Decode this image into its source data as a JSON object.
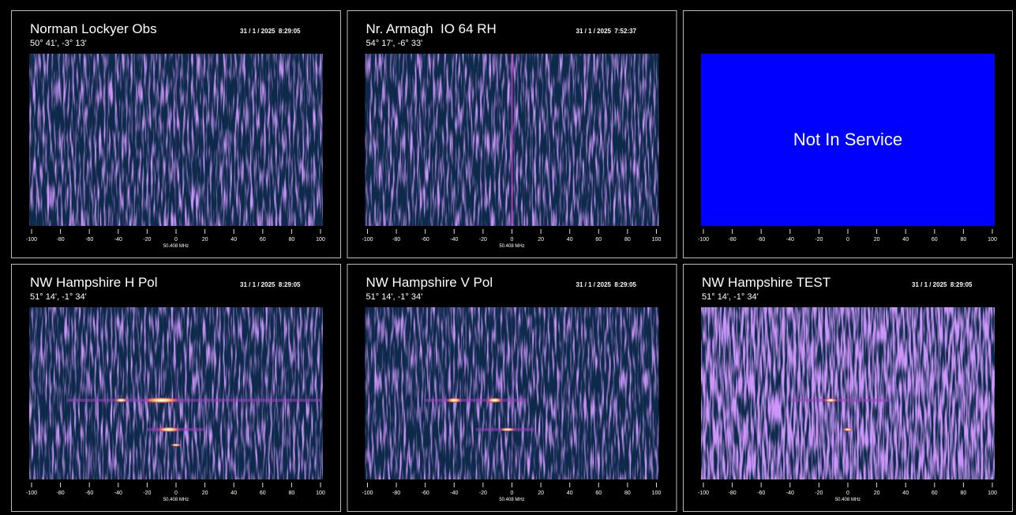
{
  "panels": [
    {
      "title": "Norman Lockyer Obs",
      "coords": "50° 41', -3° 13'",
      "timestamp": "31 / 1 / 2025  8:29:05",
      "ticks": [
        -100,
        -80,
        -60,
        -40,
        -20,
        0,
        20,
        40,
        60,
        80,
        100
      ],
      "freq_label": "50.408 MHz"
    },
    {
      "title": "Nr. Armagh  IO 64 RH",
      "coords": "54° 17', -6° 33'",
      "timestamp": "31 / 1 / 2025  7:52:37",
      "ticks": [
        -100,
        -80,
        -60,
        -40,
        -20,
        0,
        20,
        40,
        60,
        80,
        100
      ],
      "freq_label": "50.408 MHz"
    },
    {
      "status": "Not In Service",
      "ticks": [
        -100,
        -80,
        -60,
        -40,
        -20,
        0,
        20,
        40,
        60,
        80,
        100
      ]
    },
    {
      "title": "NW Hampshire H Pol",
      "coords": "51° 14', -1° 34'",
      "timestamp": "31 / 1 / 2025  8:29:05",
      "ticks": [
        -100,
        -80,
        -60,
        -40,
        -20,
        0,
        20,
        40,
        60,
        80,
        100
      ],
      "freq_label": "50.408 MHz"
    },
    {
      "title": "NW Hampshire V Pol",
      "coords": "51° 14', -1° 34'",
      "timestamp": "31 / 1 / 2025  8:29:05",
      "ticks": [
        -100,
        -80,
        -60,
        -40,
        -20,
        0,
        20,
        40,
        60,
        80,
        100
      ],
      "freq_label": "50.408 MHz"
    },
    {
      "title": "NW Hampshire TEST",
      "coords": "51° 14', -1° 34'",
      "timestamp": "31 / 1 / 2025  8:29:05",
      "ticks": [
        -100,
        -80,
        -60,
        -40,
        -20,
        0,
        20,
        40,
        60,
        80,
        100
      ],
      "freq_label": "50.408 MHz"
    }
  ]
}
